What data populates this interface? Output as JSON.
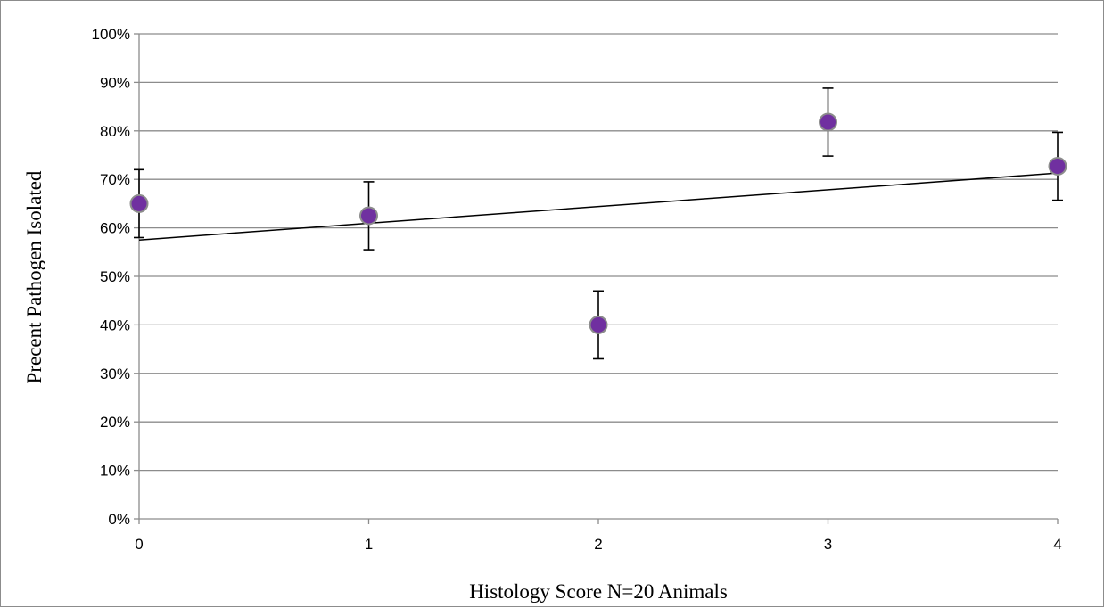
{
  "chart_data": {
    "type": "scatter",
    "xlabel": "Histology Score N=20 Animals",
    "ylabel": "Precent Pathogen Isolated",
    "x_ticks": [
      "0",
      "1",
      "2",
      "3",
      "4"
    ],
    "y_ticks": [
      "0%",
      "10%",
      "20%",
      "30%",
      "40%",
      "50%",
      "60%",
      "70%",
      "80%",
      "90%",
      "100%"
    ],
    "xlim": [
      0,
      4
    ],
    "ylim": [
      0,
      100
    ],
    "grid": true,
    "points": [
      {
        "x": 0,
        "y": 65,
        "err": 7
      },
      {
        "x": 1,
        "y": 62.5,
        "err": 7
      },
      {
        "x": 2,
        "y": 40,
        "err": 7
      },
      {
        "x": 3,
        "y": 81.8,
        "err": 7
      },
      {
        "x": 4,
        "y": 72.7,
        "err": 7
      }
    ],
    "trendline": {
      "type": "linear",
      "y_start": 57.5,
      "y_end": 71.3
    },
    "marker_color": "#7030a0",
    "marker_edge_color": "#8c8c8c",
    "grid_color": "#8c8c8c",
    "line_color": "#000000"
  }
}
